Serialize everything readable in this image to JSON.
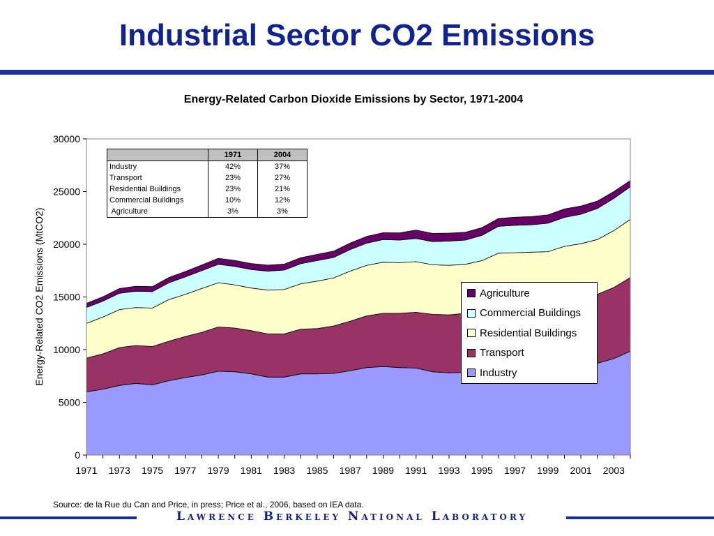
{
  "slide": {
    "title": "Industrial Sector CO2 Emissions",
    "source": "Source: de la Rue du Can and Price, in press; Price et al., 2006, based on IEA data.",
    "footer": "Lawrence Berkeley National Laboratory"
  },
  "colors": {
    "title": "#10238f",
    "rule": "#1a2fa0",
    "industry": "#9999ff",
    "transport": "#993366",
    "residential": "#ffffcc",
    "commercial": "#ccffff",
    "agriculture": "#660066"
  },
  "table": {
    "headers": [
      "",
      "1971",
      "2004"
    ],
    "rows": [
      [
        "Industry",
        "42%",
        "37%"
      ],
      [
        "Transport",
        "23%",
        "27%"
      ],
      [
        "Residential Buildings",
        "23%",
        "21%"
      ],
      [
        "Commercial Buildings",
        "10%",
        "12%"
      ],
      [
        " Agriculture",
        "3%",
        "3%"
      ]
    ]
  },
  "chart_data": {
    "type": "area",
    "stacked": true,
    "title": "Energy-Related Carbon Dioxide Emissions by Sector, 1971-2004",
    "xlabel": "",
    "ylabel": "Energy-Related CO2 Emissions (MtCO2)",
    "ylim": [
      0,
      30000
    ],
    "yticks": [
      0,
      5000,
      10000,
      15000,
      20000,
      25000,
      30000
    ],
    "xtick_labels": [
      "1971",
      "1973",
      "1975",
      "1977",
      "1979",
      "1981",
      "1983",
      "1985",
      "1987",
      "1989",
      "1991",
      "1993",
      "1995",
      "1997",
      "1999",
      "2001",
      "2003"
    ],
    "grid": false,
    "legend_position": "right",
    "x": [
      1971,
      1972,
      1973,
      1974,
      1975,
      1976,
      1977,
      1978,
      1979,
      1980,
      1981,
      1982,
      1983,
      1984,
      1985,
      1986,
      1987,
      1988,
      1989,
      1990,
      1991,
      1992,
      1993,
      1994,
      1995,
      1996,
      1997,
      1998,
      1999,
      2000,
      2001,
      2002,
      2003,
      2004
    ],
    "series": [
      {
        "name": "Industry",
        "color": "#9999ff",
        "values": [
          6000,
          6250,
          6600,
          6800,
          6650,
          7050,
          7350,
          7600,
          7950,
          7900,
          7700,
          7400,
          7400,
          7700,
          7700,
          7750,
          8000,
          8300,
          8400,
          8300,
          8250,
          7900,
          7800,
          7850,
          7900,
          7950,
          8000,
          8000,
          8000,
          8100,
          8300,
          8700,
          9150,
          9850
        ]
      },
      {
        "name": "Transport",
        "color": "#993366",
        "values": [
          3200,
          3350,
          3600,
          3600,
          3650,
          3750,
          3900,
          4050,
          4200,
          4150,
          4100,
          4100,
          4100,
          4250,
          4300,
          4500,
          4700,
          4900,
          5050,
          5150,
          5300,
          5450,
          5500,
          5600,
          5700,
          5850,
          5950,
          6050,
          6200,
          6350,
          6450,
          6550,
          6750,
          7000
        ]
      },
      {
        "name": "Residential Buildings",
        "color": "#ffffcc",
        "values": [
          3300,
          3500,
          3600,
          3600,
          3650,
          3950,
          4000,
          4150,
          4200,
          4100,
          4050,
          4150,
          4200,
          4300,
          4500,
          4550,
          4750,
          4800,
          4850,
          4800,
          4800,
          4700,
          4700,
          4650,
          4850,
          5350,
          5250,
          5200,
          5100,
          5350,
          5300,
          5200,
          5400,
          5500
        ]
      },
      {
        "name": "Commercial Buildings",
        "color": "#ccffff",
        "values": [
          1500,
          1500,
          1550,
          1550,
          1550,
          1600,
          1650,
          1700,
          1750,
          1750,
          1750,
          1800,
          1850,
          1900,
          1950,
          1950,
          2050,
          2100,
          2150,
          2150,
          2200,
          2200,
          2300,
          2300,
          2400,
          2550,
          2600,
          2600,
          2700,
          2750,
          2800,
          2950,
          3050,
          3100
        ]
      },
      {
        "name": "Agriculture",
        "color": "#660066",
        "values": [
          400,
          420,
          450,
          460,
          480,
          500,
          520,
          540,
          560,
          570,
          570,
          570,
          570,
          580,
          590,
          600,
          610,
          640,
          650,
          680,
          800,
          780,
          760,
          740,
          730,
          750,
          760,
          780,
          790,
          800,
          780,
          700,
          650,
          600
        ]
      }
    ]
  }
}
